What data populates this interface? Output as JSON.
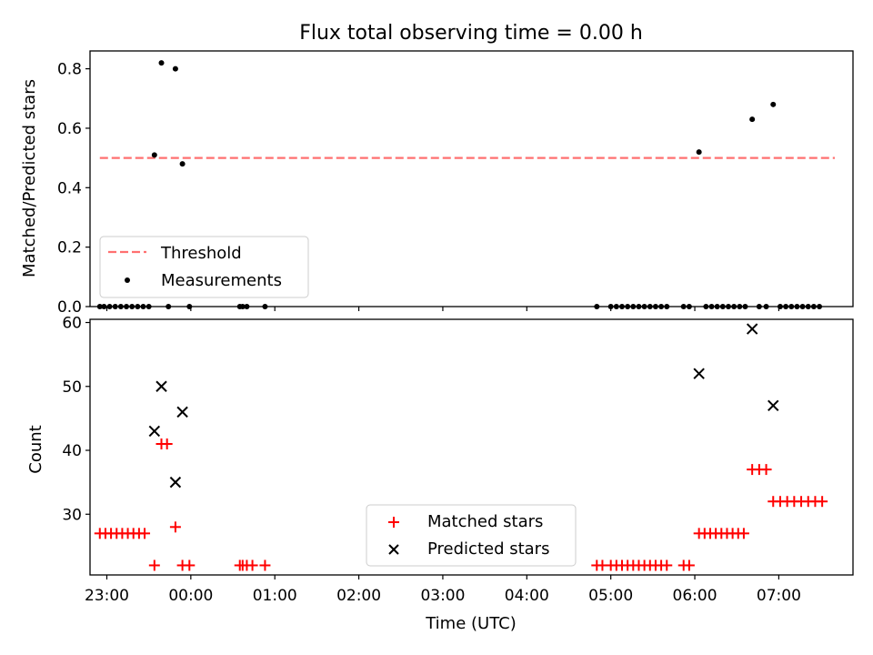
{
  "chart_data": [
    {
      "type": "scatter",
      "title": "Flux total observing time = 0.00 h",
      "xlabel": "",
      "ylabel": "Matched/Predicted stars",
      "ylim": [
        0,
        0.86
      ],
      "yticks": [
        "0.0",
        "0.2",
        "0.4",
        "0.6",
        "0.8"
      ],
      "xlim": [
        "22:48",
        "07:53"
      ],
      "legend_position": "lower-left",
      "threshold": {
        "name": "Threshold",
        "value": 0.5,
        "x_range": [
          "22:55",
          "07:40"
        ],
        "color": "#ff7070",
        "style": "dashed"
      },
      "series": [
        {
          "name": "Measurements",
          "color": "#000000",
          "marker": "dot",
          "points": [
            [
              "22:55",
              0
            ],
            [
              "22:58",
              0
            ],
            [
              "23:02",
              0
            ],
            [
              "23:06",
              0
            ],
            [
              "23:10",
              0
            ],
            [
              "23:14",
              0
            ],
            [
              "23:18",
              0
            ],
            [
              "23:22",
              0
            ],
            [
              "23:26",
              0
            ],
            [
              "23:30",
              0
            ],
            [
              "23:34",
              0.51
            ],
            [
              "23:39",
              0.82
            ],
            [
              "23:44",
              0
            ],
            [
              "23:49",
              0.8
            ],
            [
              "23:54",
              0.48
            ],
            [
              "23:59",
              0
            ],
            [
              "00:35",
              0
            ],
            [
              "00:37",
              0
            ],
            [
              "00:40",
              0
            ],
            [
              "00:53",
              0
            ],
            [
              "04:50",
              0
            ],
            [
              "05:00",
              0
            ],
            [
              "05:04",
              0
            ],
            [
              "05:08",
              0
            ],
            [
              "05:12",
              0
            ],
            [
              "05:16",
              0
            ],
            [
              "05:20",
              0
            ],
            [
              "05:24",
              0
            ],
            [
              "05:28",
              0
            ],
            [
              "05:32",
              0
            ],
            [
              "05:36",
              0
            ],
            [
              "05:40",
              0
            ],
            [
              "05:52",
              0
            ],
            [
              "05:56",
              0
            ],
            [
              "06:03",
              0.52
            ],
            [
              "06:08",
              0
            ],
            [
              "06:12",
              0
            ],
            [
              "06:16",
              0
            ],
            [
              "06:20",
              0
            ],
            [
              "06:24",
              0
            ],
            [
              "06:28",
              0
            ],
            [
              "06:32",
              0
            ],
            [
              "06:36",
              0
            ],
            [
              "06:41",
              0.63
            ],
            [
              "06:46",
              0
            ],
            [
              "06:51",
              0
            ],
            [
              "06:56",
              0.68
            ],
            [
              "07:01",
              0
            ],
            [
              "07:05",
              0
            ],
            [
              "07:09",
              0
            ],
            [
              "07:13",
              0
            ],
            [
              "07:17",
              0
            ],
            [
              "07:21",
              0
            ],
            [
              "07:25",
              0
            ],
            [
              "07:29",
              0
            ]
          ]
        }
      ]
    },
    {
      "type": "scatter",
      "title": "",
      "xlabel": "Time (UTC)",
      "ylabel": "Count",
      "ylim": [
        20.5,
        60.5
      ],
      "yticks": [
        "30",
        "40",
        "50",
        "60"
      ],
      "xlim": [
        "22:48",
        "07:53"
      ],
      "xticks": [
        "23:00",
        "00:00",
        "01:00",
        "02:00",
        "03:00",
        "04:00",
        "05:00",
        "06:00",
        "07:00"
      ],
      "legend_position": "lower-center",
      "series": [
        {
          "name": "Matched stars",
          "color": "#ff0000",
          "marker": "plus",
          "points": [
            [
              "22:55",
              27
            ],
            [
              "22:59",
              27
            ],
            [
              "23:03",
              27
            ],
            [
              "23:07",
              27
            ],
            [
              "23:11",
              27
            ],
            [
              "23:15",
              27
            ],
            [
              "23:19",
              27
            ],
            [
              "23:23",
              27
            ],
            [
              "23:27",
              27
            ],
            [
              "23:34",
              22
            ],
            [
              "23:39",
              41
            ],
            [
              "23:43",
              41
            ],
            [
              "23:49",
              28
            ],
            [
              "23:54",
              22
            ],
            [
              "23:59",
              22
            ],
            [
              "00:35",
              22
            ],
            [
              "00:37",
              22
            ],
            [
              "00:40",
              22
            ],
            [
              "00:44",
              22
            ],
            [
              "00:53",
              22
            ],
            [
              "04:50",
              22
            ],
            [
              "04:54",
              22
            ],
            [
              "05:00",
              22
            ],
            [
              "05:04",
              22
            ],
            [
              "05:08",
              22
            ],
            [
              "05:12",
              22
            ],
            [
              "05:16",
              22
            ],
            [
              "05:20",
              22
            ],
            [
              "05:24",
              22
            ],
            [
              "05:28",
              22
            ],
            [
              "05:32",
              22
            ],
            [
              "05:36",
              22
            ],
            [
              "05:40",
              22
            ],
            [
              "05:52",
              22
            ],
            [
              "05:56",
              22
            ],
            [
              "06:03",
              27
            ],
            [
              "06:07",
              27
            ],
            [
              "06:11",
              27
            ],
            [
              "06:15",
              27
            ],
            [
              "06:19",
              27
            ],
            [
              "06:23",
              27
            ],
            [
              "06:27",
              27
            ],
            [
              "06:31",
              27
            ],
            [
              "06:35",
              27
            ],
            [
              "06:41",
              37
            ],
            [
              "06:46",
              37
            ],
            [
              "06:51",
              37
            ],
            [
              "06:56",
              32
            ],
            [
              "07:01",
              32
            ],
            [
              "07:06",
              32
            ],
            [
              "07:11",
              32
            ],
            [
              "07:16",
              32
            ],
            [
              "07:21",
              32
            ],
            [
              "07:26",
              32
            ],
            [
              "07:31",
              32
            ]
          ]
        },
        {
          "name": "Predicted stars",
          "color": "#000000",
          "marker": "x",
          "points": [
            [
              "23:34",
              43
            ],
            [
              "23:39",
              50
            ],
            [
              "23:49",
              35
            ],
            [
              "23:54",
              46
            ],
            [
              "06:03",
              52
            ],
            [
              "06:41",
              59
            ],
            [
              "06:56",
              47
            ]
          ]
        }
      ]
    }
  ]
}
